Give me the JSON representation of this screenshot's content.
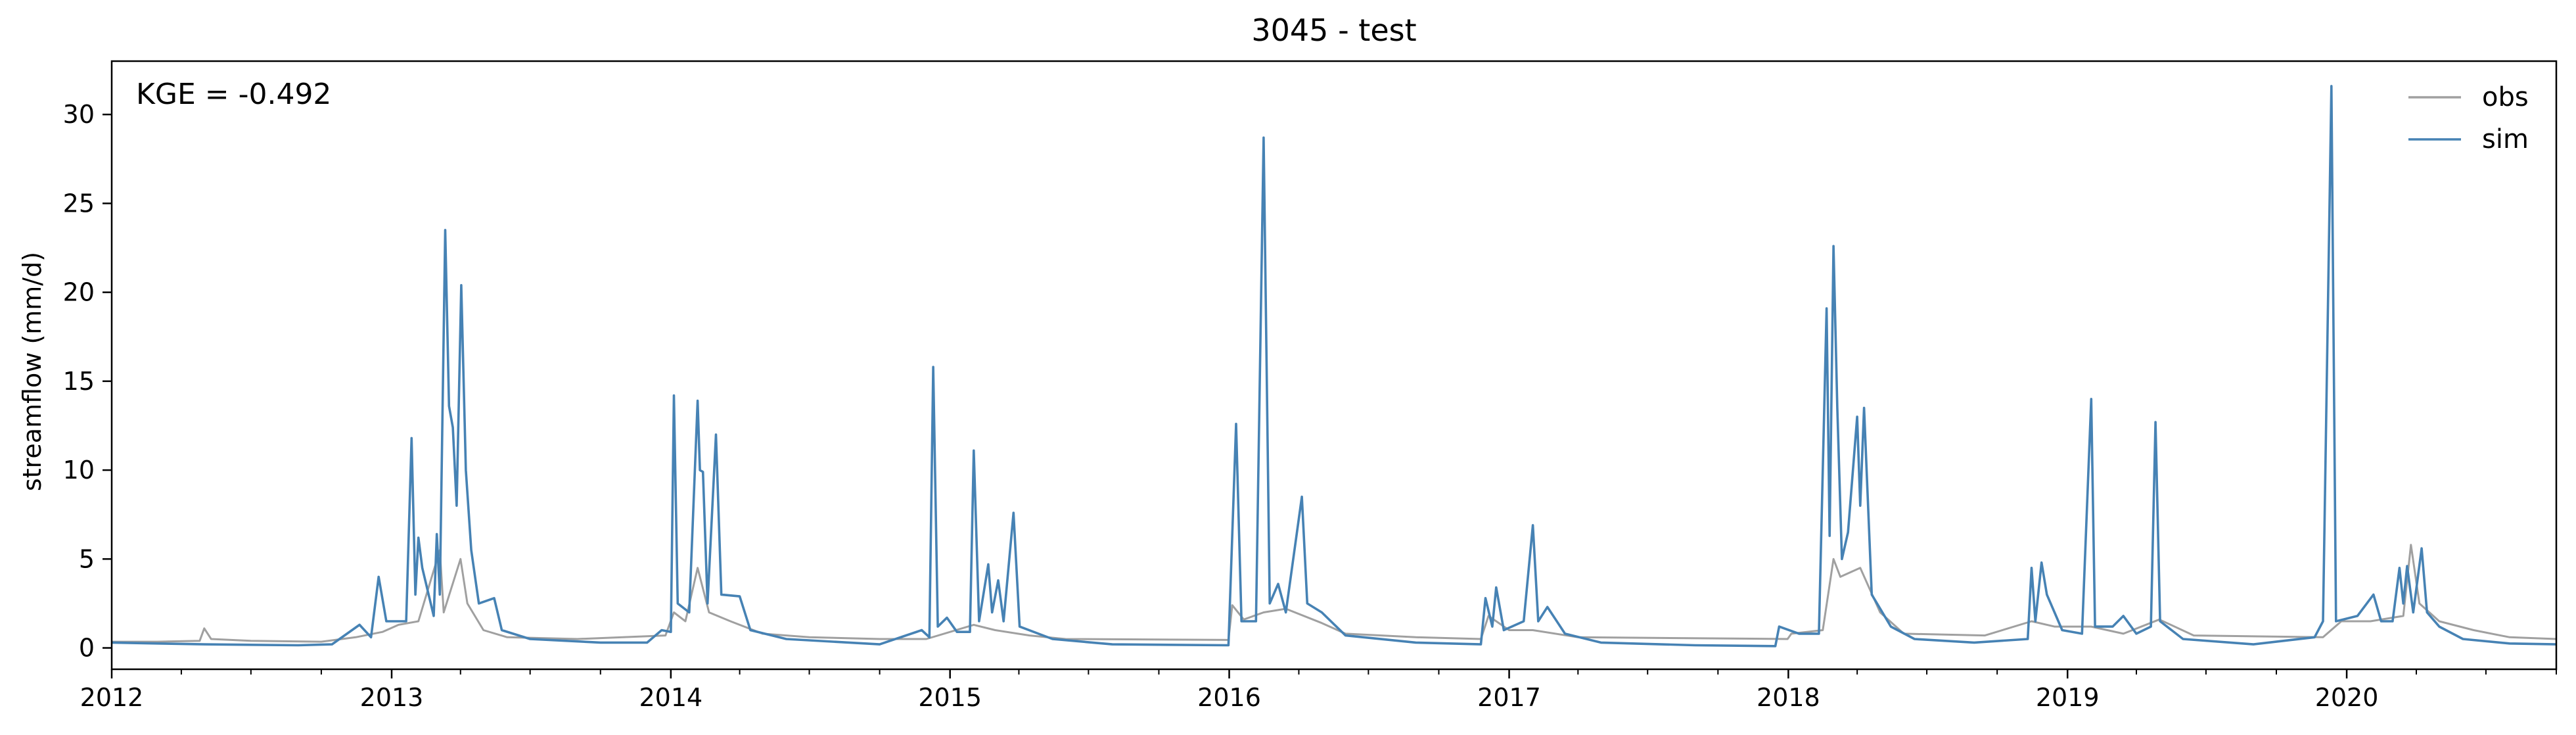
{
  "chart_data": {
    "type": "line",
    "title": "3045 - test",
    "xlabel": "",
    "ylabel": "streamflow (mm/d)",
    "annotation": "KGE = -0.492",
    "xlim": [
      "2012-01-01",
      "2020-10-01"
    ],
    "ylim": [
      -1.2,
      33.0
    ],
    "x_ticks": [
      "2012",
      "2013",
      "2014",
      "2015",
      "2016",
      "2017",
      "2018",
      "2019",
      "2020"
    ],
    "y_ticks": [
      0,
      5,
      10,
      15,
      20,
      25,
      30
    ],
    "grid": false,
    "legend_position": "top-right",
    "colors": {
      "obs": "#a0a0a0",
      "sim": "#4682b4"
    },
    "series": [
      {
        "name": "obs",
        "color": "#a0a0a0",
        "points": [
          [
            "2012-01-01",
            0.35
          ],
          [
            "2012-03-01",
            0.35
          ],
          [
            "2012-04-25",
            0.4
          ],
          [
            "2012-05-01",
            1.1
          ],
          [
            "2012-05-10",
            0.5
          ],
          [
            "2012-07-01",
            0.4
          ],
          [
            "2012-10-01",
            0.35
          ],
          [
            "2012-11-15",
            0.6
          ],
          [
            "2012-12-20",
            0.9
          ],
          [
            "2013-01-10",
            1.3
          ],
          [
            "2013-02-05",
            1.5
          ],
          [
            "2013-03-05",
            5.5
          ],
          [
            "2013-03-10",
            2.0
          ],
          [
            "2013-04-01",
            5.0
          ],
          [
            "2013-04-10",
            2.5
          ],
          [
            "2013-05-01",
            1.0
          ],
          [
            "2013-06-01",
            0.6
          ],
          [
            "2013-09-01",
            0.5
          ],
          [
            "2013-12-25",
            0.7
          ],
          [
            "2014-01-05",
            2.0
          ],
          [
            "2014-01-20",
            1.5
          ],
          [
            "2014-02-05",
            4.5
          ],
          [
            "2014-02-20",
            2.0
          ],
          [
            "2014-03-20",
            1.5
          ],
          [
            "2014-05-01",
            0.8
          ],
          [
            "2014-07-01",
            0.6
          ],
          [
            "2014-10-01",
            0.5
          ],
          [
            "2014-12-01",
            0.5
          ],
          [
            "2015-02-01",
            1.3
          ],
          [
            "2015-03-01",
            1.0
          ],
          [
            "2015-04-15",
            0.7
          ],
          [
            "2015-06-01",
            0.5
          ],
          [
            "2015-12-31",
            0.45
          ],
          [
            "2016-01-05",
            2.4
          ],
          [
            "2016-01-20",
            1.6
          ],
          [
            "2016-02-15",
            2.0
          ],
          [
            "2016-03-15",
            2.2
          ],
          [
            "2016-05-01",
            1.4
          ],
          [
            "2016-06-01",
            0.8
          ],
          [
            "2016-09-01",
            0.6
          ],
          [
            "2016-11-25",
            0.5
          ],
          [
            "2016-12-05",
            1.8
          ],
          [
            "2017-01-01",
            1.0
          ],
          [
            "2017-02-01",
            1.0
          ],
          [
            "2017-04-01",
            0.6
          ],
          [
            "2017-12-31",
            0.5
          ],
          [
            "2018-01-05",
            0.8
          ],
          [
            "2018-02-15",
            1.0
          ],
          [
            "2018-03-01",
            5.0
          ],
          [
            "2018-03-10",
            4.0
          ],
          [
            "2018-04-05",
            4.5
          ],
          [
            "2018-05-01",
            2.0
          ],
          [
            "2018-06-01",
            0.8
          ],
          [
            "2018-09-15",
            0.7
          ],
          [
            "2018-11-15",
            1.5
          ],
          [
            "2018-12-15",
            1.2
          ],
          [
            "2019-02-01",
            1.2
          ],
          [
            "2019-03-15",
            0.8
          ],
          [
            "2019-05-01",
            1.6
          ],
          [
            "2019-06-15",
            0.7
          ],
          [
            "2019-12-01",
            0.6
          ],
          [
            "2019-12-25",
            1.5
          ],
          [
            "2020-02-01",
            1.5
          ],
          [
            "2020-03-15",
            1.8
          ],
          [
            "2020-03-25",
            5.8
          ],
          [
            "2020-04-05",
            2.5
          ],
          [
            "2020-05-01",
            1.5
          ],
          [
            "2020-06-15",
            1.0
          ],
          [
            "2020-08-01",
            0.6
          ],
          [
            "2020-10-01",
            0.5
          ]
        ]
      },
      {
        "name": "sim",
        "color": "#4682b4",
        "points": [
          [
            "2012-01-01",
            0.3
          ],
          [
            "2012-03-01",
            0.25
          ],
          [
            "2012-05-01",
            0.2
          ],
          [
            "2012-09-01",
            0.15
          ],
          [
            "2012-10-15",
            0.2
          ],
          [
            "2012-11-20",
            1.3
          ],
          [
            "2012-12-05",
            0.6
          ],
          [
            "2012-12-15",
            4.0
          ],
          [
            "2012-12-25",
            1.5
          ],
          [
            "2013-01-20",
            1.5
          ],
          [
            "2013-01-27",
            11.8
          ],
          [
            "2013-02-01",
            3.0
          ],
          [
            "2013-02-05",
            6.2
          ],
          [
            "2013-02-10",
            4.5
          ],
          [
            "2013-02-25",
            1.8
          ],
          [
            "2013-03-01",
            6.4
          ],
          [
            "2013-03-05",
            3.0
          ],
          [
            "2013-03-12",
            23.5
          ],
          [
            "2013-03-17",
            13.6
          ],
          [
            "2013-03-22",
            12.4
          ],
          [
            "2013-03-27",
            8.0
          ],
          [
            "2013-04-02",
            20.4
          ],
          [
            "2013-04-08",
            10.0
          ],
          [
            "2013-04-15",
            5.5
          ],
          [
            "2013-04-25",
            2.5
          ],
          [
            "2013-05-15",
            2.8
          ],
          [
            "2013-05-25",
            1.0
          ],
          [
            "2013-07-01",
            0.5
          ],
          [
            "2013-10-01",
            0.3
          ],
          [
            "2013-12-01",
            0.3
          ],
          [
            "2013-12-20",
            1.0
          ],
          [
            "2014-01-01",
            0.9
          ],
          [
            "2014-01-05",
            14.2
          ],
          [
            "2014-01-10",
            2.5
          ],
          [
            "2014-01-25",
            2.0
          ],
          [
            "2014-02-05",
            13.9
          ],
          [
            "2014-02-08",
            10.0
          ],
          [
            "2014-02-12",
            9.9
          ],
          [
            "2014-02-18",
            2.5
          ],
          [
            "2014-03-01",
            12.0
          ],
          [
            "2014-03-08",
            3.0
          ],
          [
            "2014-04-01",
            2.9
          ],
          [
            "2014-04-15",
            1.0
          ],
          [
            "2014-06-01",
            0.5
          ],
          [
            "2014-10-01",
            0.2
          ],
          [
            "2014-11-25",
            1.0
          ],
          [
            "2014-12-05",
            0.6
          ],
          [
            "2014-12-10",
            15.8
          ],
          [
            "2014-12-16",
            1.2
          ],
          [
            "2014-12-28",
            1.7
          ],
          [
            "2015-01-10",
            0.9
          ],
          [
            "2015-01-27",
            0.9
          ],
          [
            "2015-02-01",
            11.1
          ],
          [
            "2015-02-08",
            1.5
          ],
          [
            "2015-02-20",
            4.7
          ],
          [
            "2015-02-25",
            2.0
          ],
          [
            "2015-03-05",
            3.8
          ],
          [
            "2015-03-12",
            1.5
          ],
          [
            "2015-03-25",
            7.6
          ],
          [
            "2015-04-02",
            1.2
          ],
          [
            "2015-05-15",
            0.5
          ],
          [
            "2015-08-01",
            0.2
          ],
          [
            "2015-12-31",
            0.15
          ],
          [
            "2016-01-10",
            12.6
          ],
          [
            "2016-01-17",
            1.5
          ],
          [
            "2016-02-05",
            1.5
          ],
          [
            "2016-02-15",
            28.7
          ],
          [
            "2016-02-23",
            2.5
          ],
          [
            "2016-03-05",
            3.6
          ],
          [
            "2016-03-15",
            2.0
          ],
          [
            "2016-04-05",
            8.5
          ],
          [
            "2016-04-12",
            2.5
          ],
          [
            "2016-05-01",
            2.0
          ],
          [
            "2016-06-01",
            0.7
          ],
          [
            "2016-09-01",
            0.3
          ],
          [
            "2016-11-25",
            0.2
          ],
          [
            "2016-12-01",
            2.8
          ],
          [
            "2016-12-10",
            1.2
          ],
          [
            "2016-12-15",
            3.4
          ],
          [
            "2016-12-25",
            1.0
          ],
          [
            "2017-01-20",
            1.5
          ],
          [
            "2017-02-01",
            6.9
          ],
          [
            "2017-02-08",
            1.5
          ],
          [
            "2017-02-20",
            2.3
          ],
          [
            "2017-03-15",
            0.8
          ],
          [
            "2017-05-01",
            0.3
          ],
          [
            "2017-09-01",
            0.15
          ],
          [
            "2017-12-15",
            0.1
          ],
          [
            "2017-12-20",
            1.2
          ],
          [
            "2018-01-15",
            0.8
          ],
          [
            "2018-02-10",
            0.8
          ],
          [
            "2018-02-20",
            19.1
          ],
          [
            "2018-02-24",
            6.3
          ],
          [
            "2018-03-01",
            22.6
          ],
          [
            "2018-03-06",
            13.5
          ],
          [
            "2018-03-12",
            5.0
          ],
          [
            "2018-03-20",
            6.5
          ],
          [
            "2018-04-01",
            13.0
          ],
          [
            "2018-04-05",
            8.0
          ],
          [
            "2018-04-10",
            13.5
          ],
          [
            "2018-04-20",
            3.0
          ],
          [
            "2018-05-15",
            1.2
          ],
          [
            "2018-06-15",
            0.5
          ],
          [
            "2018-09-01",
            0.3
          ],
          [
            "2018-11-10",
            0.5
          ],
          [
            "2018-11-15",
            4.5
          ],
          [
            "2018-11-20",
            1.5
          ],
          [
            "2018-11-28",
            4.8
          ],
          [
            "2018-12-05",
            3.0
          ],
          [
            "2018-12-25",
            1.0
          ],
          [
            "2019-01-20",
            0.8
          ],
          [
            "2019-02-01",
            14.0
          ],
          [
            "2019-02-06",
            1.2
          ],
          [
            "2019-03-01",
            1.2
          ],
          [
            "2019-03-15",
            1.8
          ],
          [
            "2019-04-01",
            0.8
          ],
          [
            "2019-04-20",
            1.2
          ],
          [
            "2019-04-26",
            12.7
          ],
          [
            "2019-05-02",
            1.5
          ],
          [
            "2019-06-01",
            0.5
          ],
          [
            "2019-09-01",
            0.2
          ],
          [
            "2019-11-20",
            0.6
          ],
          [
            "2019-12-01",
            1.5
          ],
          [
            "2019-12-12",
            31.6
          ],
          [
            "2019-12-18",
            1.5
          ],
          [
            "2020-01-15",
            1.8
          ],
          [
            "2020-02-05",
            3.0
          ],
          [
            "2020-02-15",
            1.5
          ],
          [
            "2020-03-01",
            1.5
          ],
          [
            "2020-03-10",
            4.5
          ],
          [
            "2020-03-15",
            2.5
          ],
          [
            "2020-03-20",
            4.6
          ],
          [
            "2020-03-28",
            2.0
          ],
          [
            "2020-04-08",
            5.6
          ],
          [
            "2020-04-15",
            2.0
          ],
          [
            "2020-05-01",
            1.2
          ],
          [
            "2020-06-01",
            0.5
          ],
          [
            "2020-08-01",
            0.25
          ],
          [
            "2020-10-01",
            0.2
          ]
        ]
      }
    ]
  }
}
